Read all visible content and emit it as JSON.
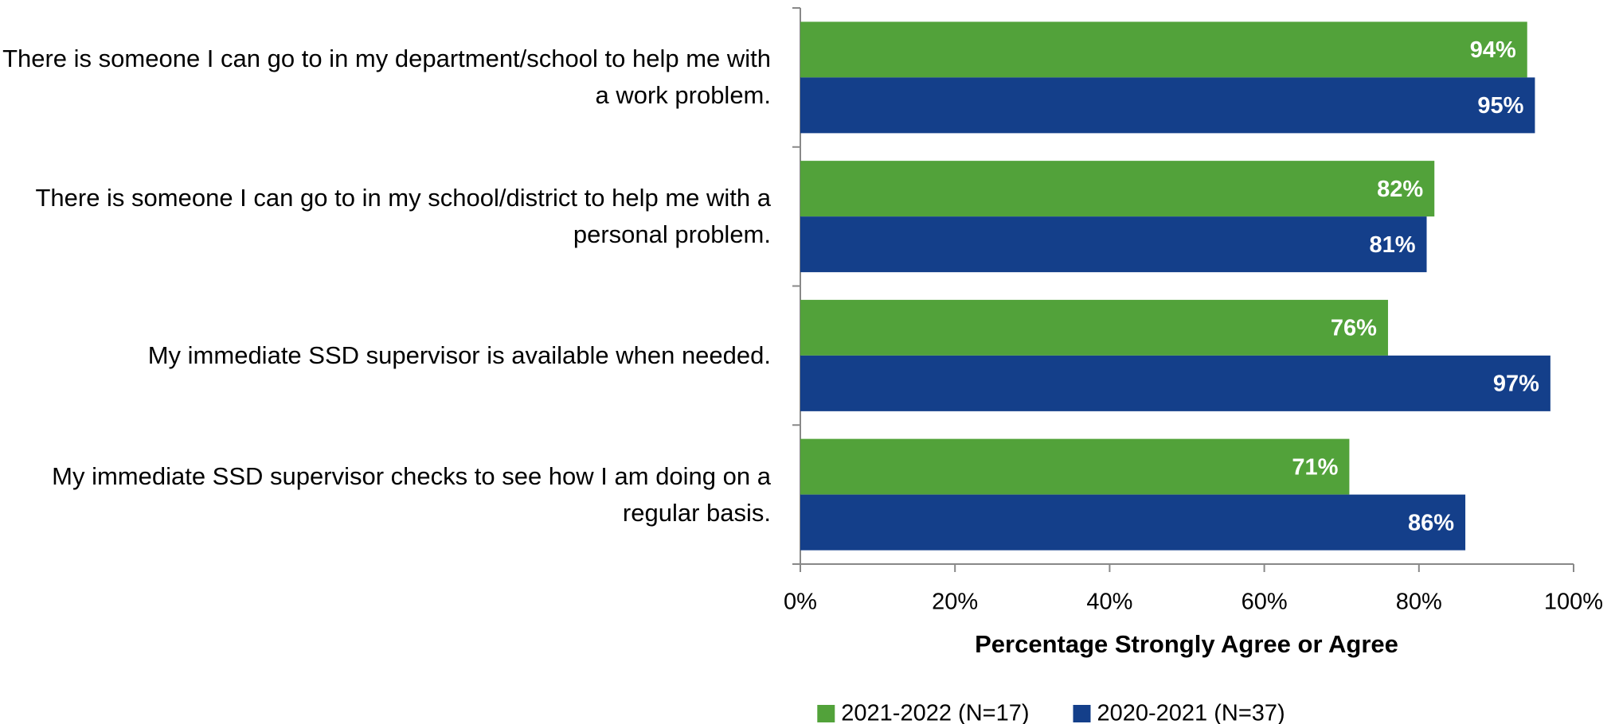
{
  "chart_data": {
    "type": "bar",
    "orientation": "horizontal",
    "categories": [
      "There is someone I can go to in my department/school to help me with a work problem.",
      "There is someone I can go to in my school/district to help me with a personal problem.",
      "My immediate SSD supervisor is available when needed.",
      "My immediate SSD supervisor checks to see how I am doing on a regular basis."
    ],
    "series": [
      {
        "name": "2021-2022 (N=17)",
        "color": "#52a23a",
        "values": [
          94,
          82,
          76,
          71
        ],
        "value_labels": [
          "94%",
          "82%",
          "76%",
          "71%"
        ]
      },
      {
        "name": "2020-2021 (N=37)",
        "color": "#143f8a",
        "values": [
          95,
          81,
          97,
          86
        ],
        "value_labels": [
          "95%",
          "81%",
          "97%",
          "86%"
        ]
      }
    ],
    "xlabel": "Percentage Strongly Agree or Agree",
    "xlim": [
      0,
      100
    ],
    "xticks": [
      {
        "value": 0,
        "label": "0%"
      },
      {
        "value": 20,
        "label": "20%"
      },
      {
        "value": 40,
        "label": "40%"
      },
      {
        "value": 60,
        "label": "60%"
      },
      {
        "value": 80,
        "label": "80%"
      },
      {
        "value": 100,
        "label": "100%"
      }
    ],
    "legend": "bottom"
  }
}
